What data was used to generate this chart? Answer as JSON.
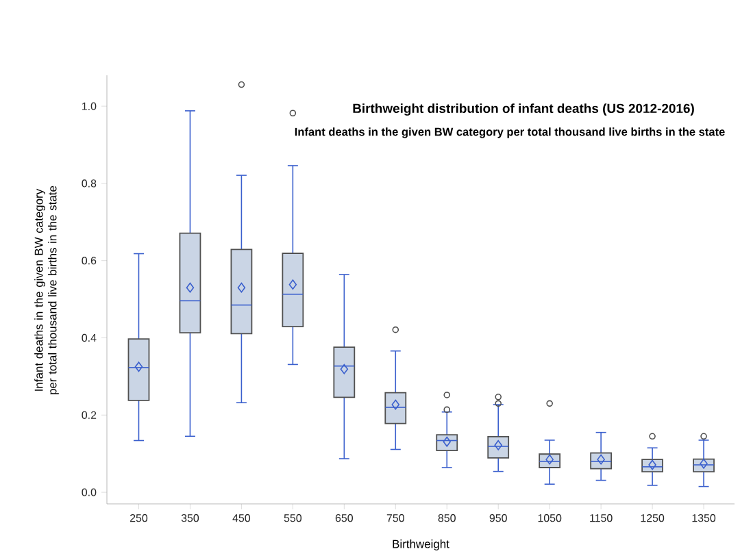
{
  "chart_data": {
    "type": "box",
    "title": "Birthweight distribution of infant deaths (US 2012-2016)",
    "subtitle": "Infant deaths in the given BW category per total thousand live births in the state",
    "xlabel": "Birthweight",
    "ylabel": "Infant deaths in the given BW category per total thousand live births in the state",
    "categories": [
      "250",
      "350",
      "450",
      "550",
      "650",
      "750",
      "850",
      "950",
      "1050",
      "1150",
      "1250",
      "1350"
    ],
    "color": "#cad5e5",
    "marker": "diamond",
    "boxes": [
      {
        "low": 0.134,
        "q1": 0.238,
        "median": 0.323,
        "q3": 0.397,
        "high": 0.618,
        "mean": 0.325
      },
      {
        "low": 0.145,
        "q1": 0.413,
        "median": 0.496,
        "q3": 0.671,
        "high": 0.988,
        "mean": 0.53
      },
      {
        "low": 0.232,
        "q1": 0.411,
        "median": 0.485,
        "q3": 0.629,
        "high": 0.821,
        "mean": 0.53,
        "outliers": [
          1.056
        ]
      },
      {
        "low": 0.331,
        "q1": 0.429,
        "median": 0.513,
        "q3": 0.619,
        "high": 0.846,
        "mean": 0.538,
        "outliers": [
          0.982
        ]
      },
      {
        "low": 0.087,
        "q1": 0.246,
        "median": 0.327,
        "q3": 0.376,
        "high": 0.564,
        "mean": 0.319
      },
      {
        "low": 0.111,
        "q1": 0.178,
        "median": 0.22,
        "q3": 0.258,
        "high": 0.366,
        "mean": 0.227,
        "outliers": [
          0.421
        ]
      },
      {
        "low": 0.064,
        "q1": 0.108,
        "median": 0.134,
        "q3": 0.149,
        "high": 0.208,
        "mean": 0.131,
        "outliers": [
          0.214,
          0.252
        ]
      },
      {
        "low": 0.054,
        "q1": 0.089,
        "median": 0.119,
        "q3": 0.144,
        "high": 0.227,
        "mean": 0.122,
        "outliers": [
          0.23,
          0.247
        ]
      },
      {
        "low": 0.021,
        "q1": 0.064,
        "median": 0.08,
        "q3": 0.099,
        "high": 0.135,
        "mean": 0.085,
        "outliers": [
          0.23
        ]
      },
      {
        "low": 0.031,
        "q1": 0.061,
        "median": 0.08,
        "q3": 0.102,
        "high": 0.155,
        "mean": 0.085
      },
      {
        "low": 0.018,
        "q1": 0.053,
        "median": 0.066,
        "q3": 0.085,
        "high": 0.115,
        "mean": 0.071,
        "outliers": [
          0.145
        ]
      },
      {
        "low": 0.015,
        "q1": 0.053,
        "median": 0.071,
        "q3": 0.086,
        "high": 0.135,
        "mean": 0.074,
        "outliers": [
          0.145
        ]
      }
    ],
    "ylim": [
      -0.03,
      1.08
    ],
    "yticks": [
      {
        "value": 0,
        "label": "0.0"
      },
      0.2,
      0.4,
      0.6,
      0.8,
      {
        "value": 1,
        "label": "1.0"
      }
    ]
  }
}
